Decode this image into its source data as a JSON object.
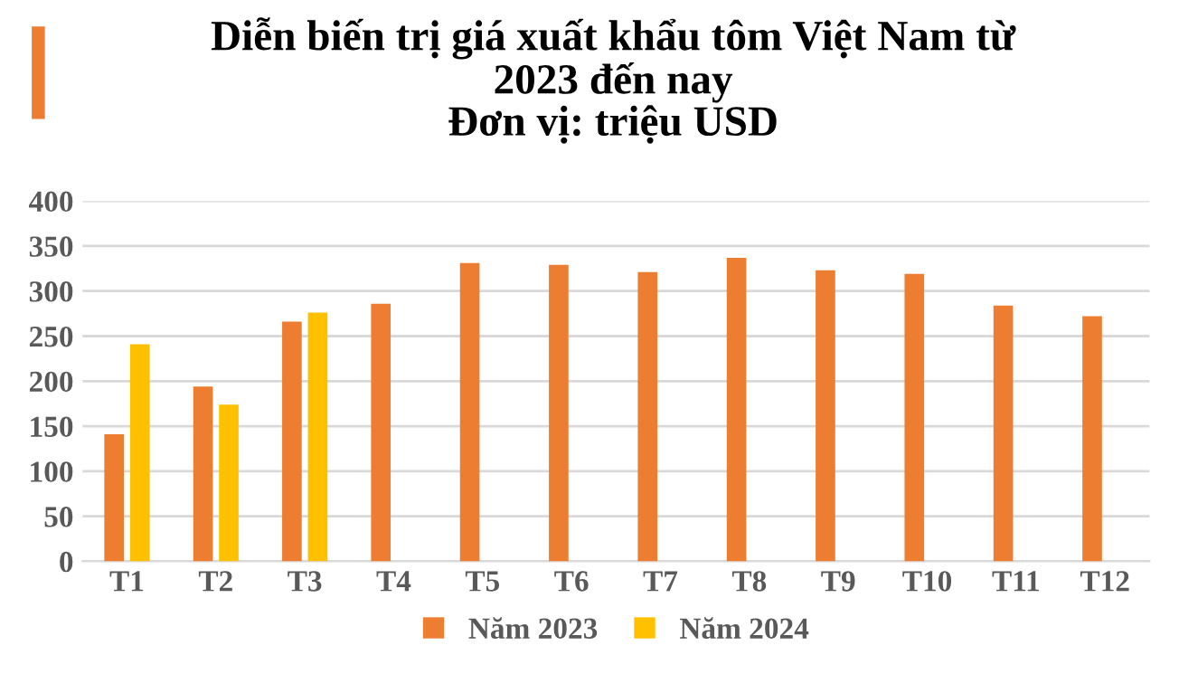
{
  "chart_data": {
    "type": "bar",
    "title": "Diễn biến trị giá xuất khẩu tôm Việt Nam từ\n2023 đến nay\nĐơn vị: triệu USD",
    "categories": [
      "T1",
      "T2",
      "T3",
      "T4",
      "T5",
      "T6",
      "T7",
      "T8",
      "T9",
      "T10",
      "T11",
      "T12"
    ],
    "series": [
      {
        "name": "Năm 2023",
        "color": "#ed7d31",
        "values": [
          141,
          194,
          266,
          286,
          331,
          329,
          321,
          337,
          323,
          319,
          284,
          272
        ]
      },
      {
        "name": "Năm 2024",
        "color": "#ffc000",
        "values": [
          241,
          174,
          276,
          null,
          null,
          null,
          null,
          null,
          null,
          null,
          null,
          null
        ]
      }
    ],
    "ylim": [
      0,
      400
    ],
    "yticks": [
      0,
      50,
      100,
      150,
      200,
      250,
      300,
      350,
      400
    ],
    "grid": "y",
    "legend": "bottom"
  }
}
